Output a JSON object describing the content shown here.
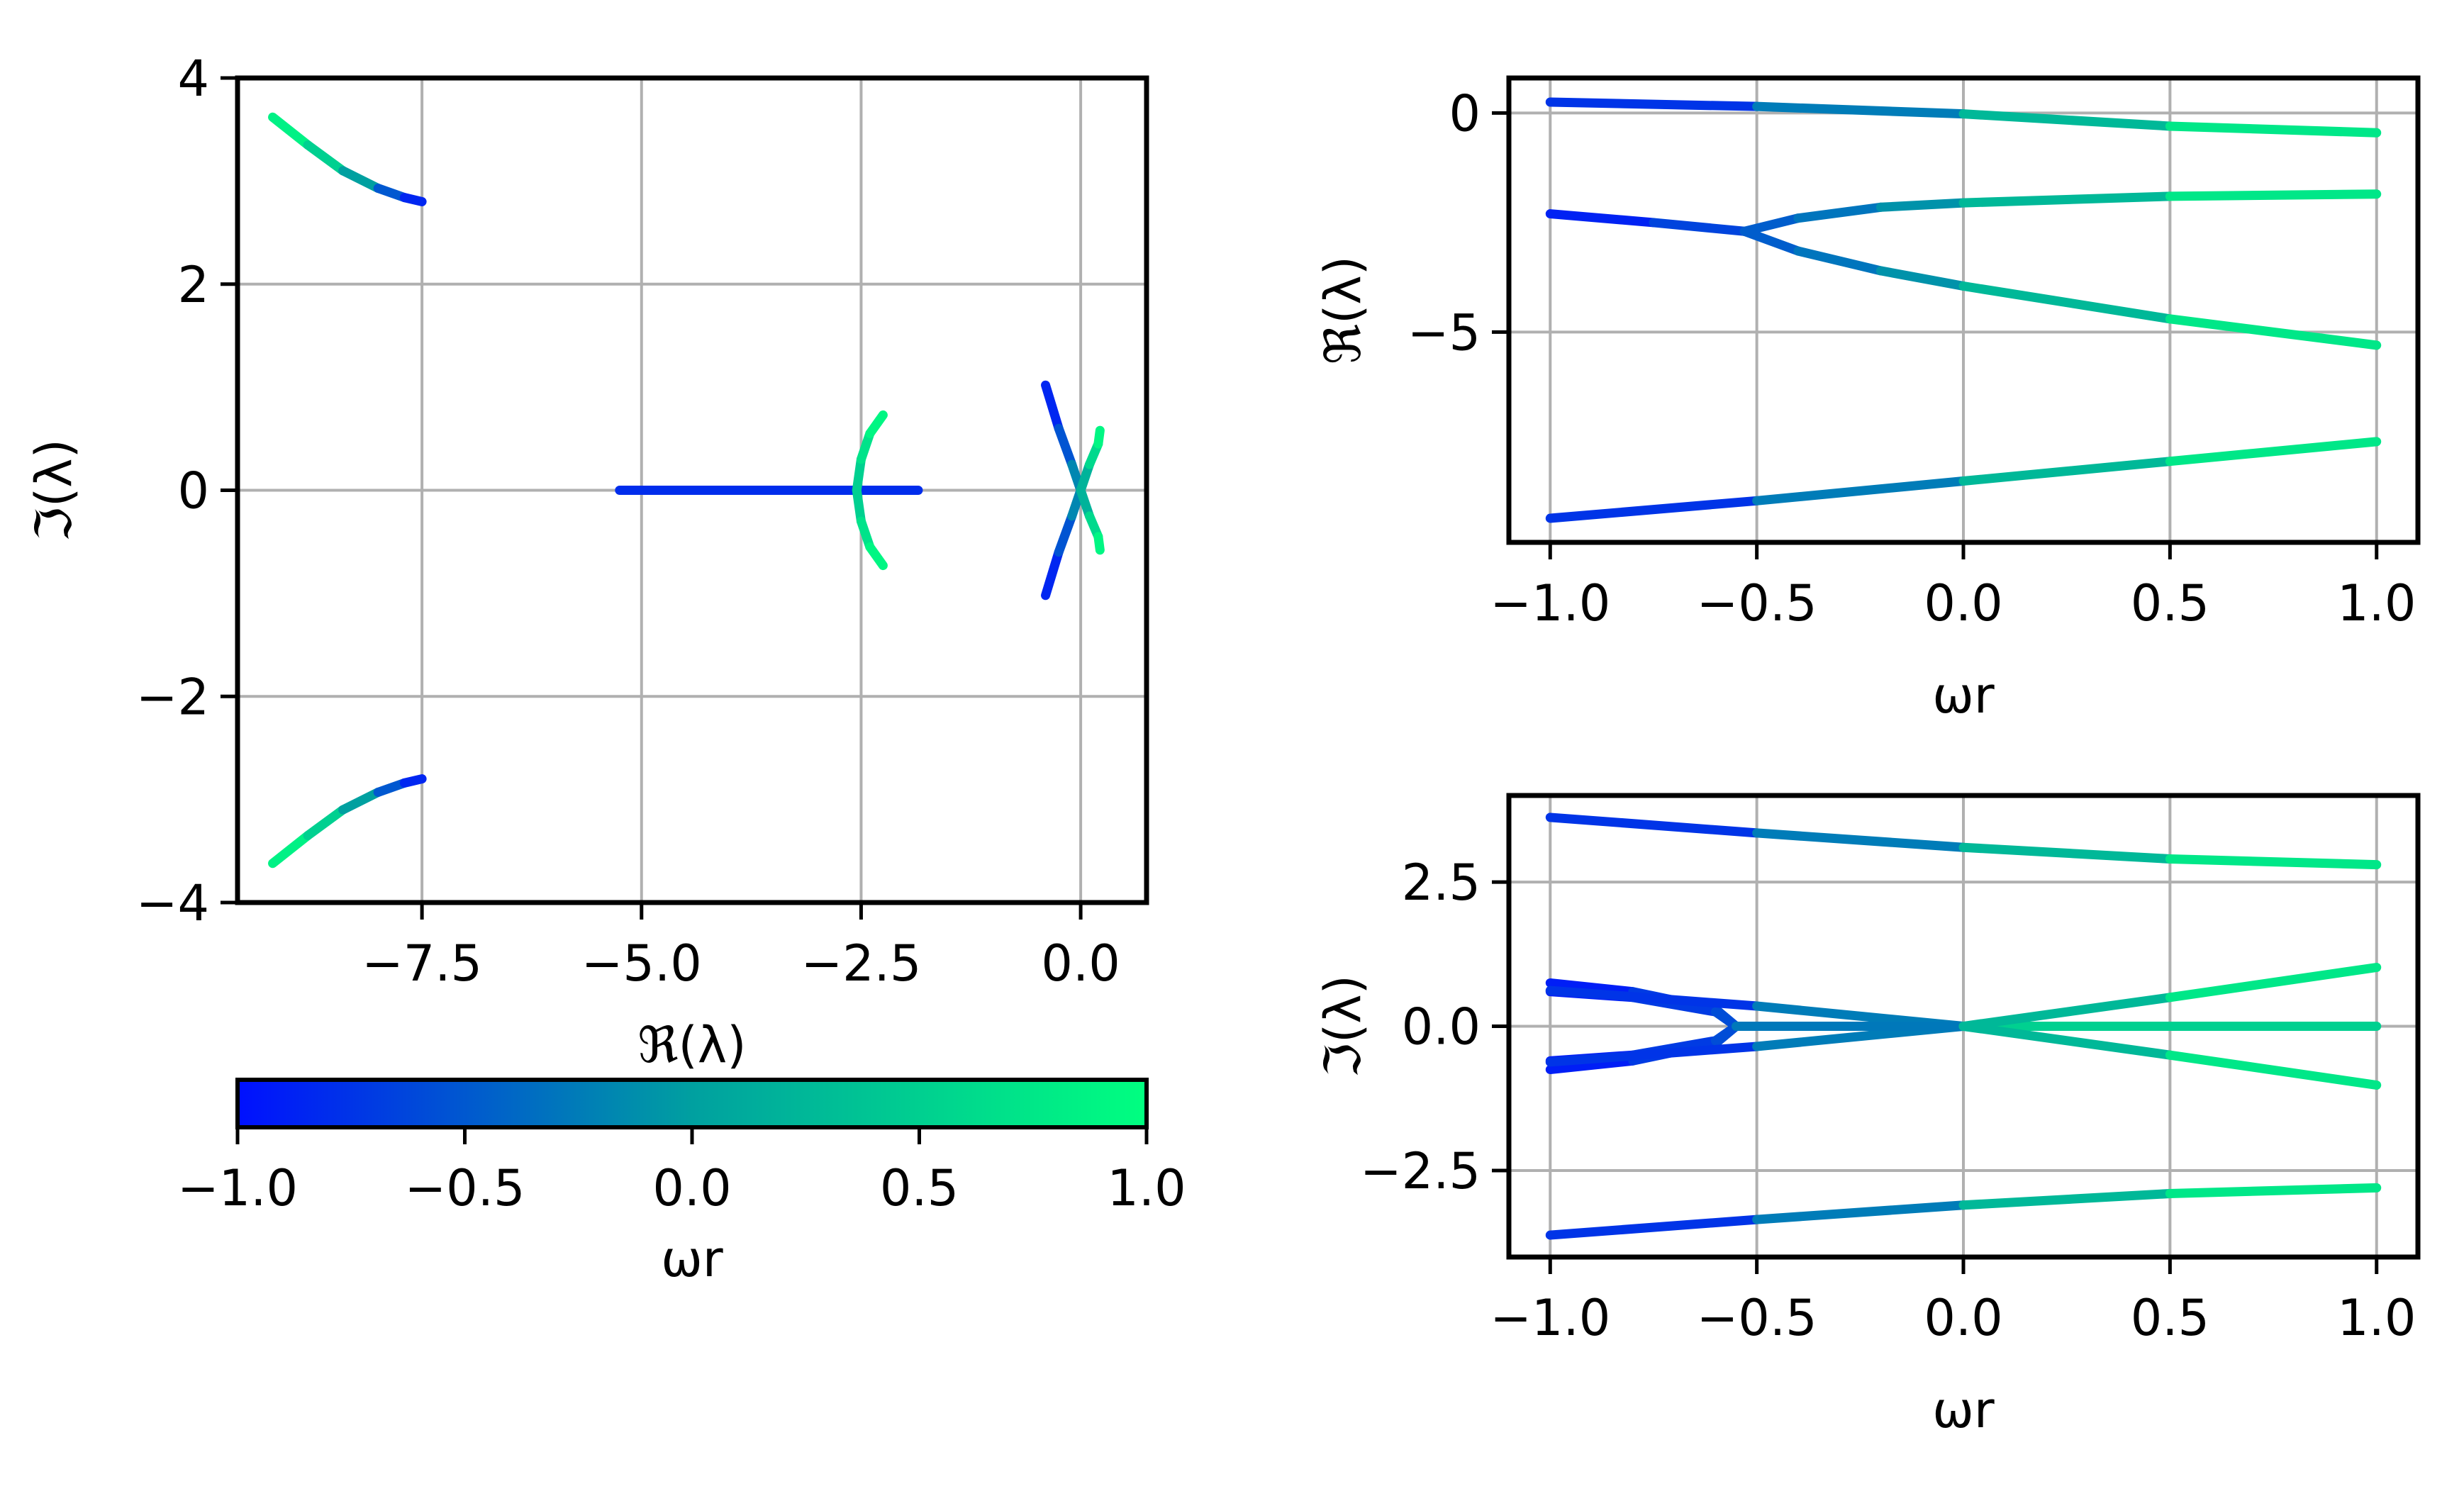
{
  "colors": {
    "low": "#0010ff",
    "mid": "#00a0a0",
    "high": "#00ff80",
    "grid": "#b0b0b0",
    "axes": "#000000"
  },
  "chart_data": [
    {
      "id": "root-locus",
      "type": "line",
      "xlabel": "ℜ(λ)",
      "ylabel": "ℑ(λ)",
      "xlim": [
        -9.6,
        0.75
      ],
      "ylim": [
        -4,
        4
      ],
      "xticks": [
        -7.5,
        -5.0,
        -2.5,
        0.0
      ],
      "xtick_labels": [
        "−7.5",
        "−5.0",
        "−2.5",
        "0.0"
      ],
      "yticks": [
        -4,
        -2,
        0,
        2,
        4
      ],
      "ytick_labels": [
        "−4",
        "−2",
        "0",
        "2",
        "4"
      ],
      "grid": true,
      "series": [
        {
          "x": [
            -9.2,
            -8.8,
            -8.4,
            -8.0,
            -7.7,
            -7.5
          ],
          "y": [
            3.62,
            3.35,
            3.1,
            2.93,
            2.84,
            2.8
          ],
          "t": [
            1.0,
            0.7,
            0.3,
            -0.3,
            -0.7,
            -1.0
          ]
        },
        {
          "x": [
            -9.2,
            -8.8,
            -8.4,
            -8.0,
            -7.7,
            -7.5
          ],
          "y": [
            -3.62,
            -3.35,
            -3.1,
            -2.93,
            -2.84,
            -2.8
          ],
          "t": [
            1.0,
            0.7,
            0.3,
            -0.3,
            -0.7,
            -1.0
          ]
        },
        {
          "x": [
            -5.25,
            -1.85
          ],
          "y": [
            0.0,
            0.0
          ],
          "t": [
            -0.8,
            -0.8
          ]
        },
        {
          "x": [
            -2.55,
            -2.5,
            -2.4,
            -2.25
          ],
          "y": [
            0.0,
            0.3,
            0.55,
            0.73
          ],
          "t": [
            0.4,
            0.6,
            0.8,
            1.0
          ]
        },
        {
          "x": [
            -2.55,
            -2.5,
            -2.4,
            -2.25
          ],
          "y": [
            0.0,
            -0.3,
            -0.55,
            -0.73
          ],
          "t": [
            0.4,
            0.6,
            0.8,
            1.0
          ]
        },
        {
          "x": [
            -0.4,
            -0.25,
            -0.1,
            0.0
          ],
          "y": [
            1.02,
            0.6,
            0.25,
            0.0
          ],
          "t": [
            -1.0,
            -0.7,
            -0.35,
            0.0
          ]
        },
        {
          "x": [
            -0.4,
            -0.25,
            -0.1,
            0.0
          ],
          "y": [
            -1.02,
            -0.6,
            -0.25,
            0.0
          ],
          "t": [
            -1.0,
            -0.7,
            -0.35,
            0.0
          ]
        },
        {
          "x": [
            0.0,
            0.1,
            0.2,
            0.22
          ],
          "y": [
            0.0,
            0.25,
            0.45,
            0.58
          ],
          "t": [
            0.0,
            0.4,
            0.8,
            1.0
          ]
        },
        {
          "x": [
            0.0,
            0.1,
            0.2,
            0.22
          ],
          "y": [
            0.0,
            -0.25,
            -0.45,
            -0.58
          ],
          "t": [
            0.0,
            0.4,
            0.8,
            1.0
          ]
        }
      ]
    },
    {
      "id": "real-part",
      "type": "line",
      "xlabel": "ωr",
      "ylabel": "ℜ(λ)",
      "xlim": [
        -1.1,
        1.1
      ],
      "ylim": [
        -9.8,
        0.8
      ],
      "xticks": [
        -1.0,
        -0.5,
        0.0,
        0.5,
        1.0
      ],
      "xtick_labels": [
        "−1.0",
        "−0.5",
        "0.0",
        "0.5",
        "1.0"
      ],
      "yticks": [
        0,
        -5
      ],
      "ytick_labels": [
        "0",
        "−5"
      ],
      "grid": true,
      "series": [
        {
          "x": [
            -1.0,
            -0.5,
            0.0,
            0.5,
            1.0
          ],
          "y": [
            0.25,
            0.15,
            -0.02,
            -0.3,
            -0.45
          ]
        },
        {
          "x": [
            -1.0,
            -0.75,
            -0.53
          ],
          "y": [
            -2.3,
            -2.5,
            -2.7
          ]
        },
        {
          "x": [
            -0.53,
            -0.4,
            -0.2,
            0.0,
            0.5,
            1.0
          ],
          "y": [
            -2.7,
            -2.4,
            -2.15,
            -2.05,
            -1.9,
            -1.85
          ]
        },
        {
          "x": [
            -0.53,
            -0.4,
            -0.2,
            0.0,
            0.5,
            1.0
          ],
          "y": [
            -2.7,
            -3.15,
            -3.6,
            -3.95,
            -4.7,
            -5.3
          ]
        },
        {
          "x": [
            -1.0,
            -0.5,
            0.0,
            0.5,
            1.0
          ],
          "y": [
            -9.25,
            -8.85,
            -8.4,
            -7.95,
            -7.5
          ]
        }
      ]
    },
    {
      "id": "imag-part",
      "type": "line",
      "xlabel": "ωr",
      "ylabel": "ℑ(λ)",
      "xlim": [
        -1.1,
        1.1
      ],
      "ylim": [
        -4.0,
        4.0
      ],
      "xticks": [
        -1.0,
        -0.5,
        0.0,
        0.5,
        1.0
      ],
      "xtick_labels": [
        "−1.0",
        "−0.5",
        "0.0",
        "0.5",
        "1.0"
      ],
      "yticks": [
        2.5,
        0.0,
        -2.5
      ],
      "ytick_labels": [
        "2.5",
        "0.0",
        "−2.5"
      ],
      "grid": true,
      "series": [
        {
          "x": [
            -1.0,
            -0.5,
            0.0,
            0.5,
            1.0
          ],
          "y": [
            3.62,
            3.35,
            3.1,
            2.9,
            2.8
          ]
        },
        {
          "x": [
            -1.0,
            -0.5,
            0.0,
            0.5,
            1.0
          ],
          "y": [
            -3.62,
            -3.35,
            -3.1,
            -2.9,
            -2.8
          ]
        },
        {
          "x": [
            -1.0,
            -0.8,
            -0.6,
            -0.55
          ],
          "y": [
            0.75,
            0.6,
            0.3,
            0.0
          ]
        },
        {
          "x": [
            -1.0,
            -0.8,
            -0.6,
            -0.55
          ],
          "y": [
            0.6,
            0.5,
            0.25,
            0.0
          ]
        },
        {
          "x": [
            -1.0,
            -0.8,
            -0.6,
            -0.55
          ],
          "y": [
            -0.75,
            -0.6,
            -0.3,
            0.0
          ]
        },
        {
          "x": [
            -1.0,
            -0.8,
            -0.6,
            -0.55
          ],
          "y": [
            -0.6,
            -0.5,
            -0.25,
            0.0
          ]
        },
        {
          "x": [
            -1.0,
            -0.5,
            0.0
          ],
          "y": [
            0.62,
            0.35,
            0.0
          ]
        },
        {
          "x": [
            -1.0,
            -0.5,
            0.0
          ],
          "y": [
            -0.62,
            -0.35,
            0.0
          ]
        },
        {
          "x": [
            -0.55,
            0.0,
            1.0
          ],
          "y": [
            0.0,
            0.0,
            0.0
          ]
        },
        {
          "x": [
            0.0,
            0.5,
            1.0
          ],
          "y": [
            0.0,
            0.5,
            1.02
          ]
        },
        {
          "x": [
            0.0,
            0.5,
            1.0
          ],
          "y": [
            0.0,
            -0.5,
            -1.02
          ]
        }
      ]
    }
  ],
  "colorbar": {
    "label": "ωr",
    "range": [
      -1.0,
      1.0
    ],
    "ticks": [
      -1.0,
      -0.5,
      0.0,
      0.5,
      1.0
    ],
    "tick_labels": [
      "−1.0",
      "−0.5",
      "0.0",
      "0.5",
      "1.0"
    ]
  }
}
